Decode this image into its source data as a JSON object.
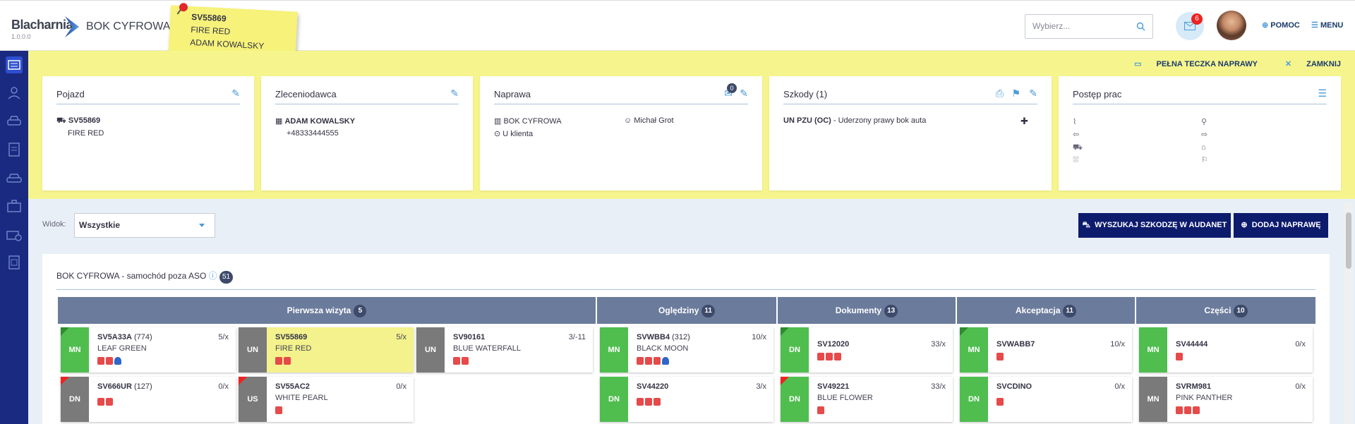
{
  "app": {
    "name": "Blacharnia",
    "version": "1.0.0.0",
    "title": "BOK CYFROWA"
  },
  "sticky": {
    "reg": "SV55869",
    "color": "FIRE RED",
    "owner": "ADAM KOWALSKY"
  },
  "header": {
    "search_placeholder": "Wybierz...",
    "mail_count": "6",
    "help_label": "POMOC",
    "menu_label": "MENU"
  },
  "yellow_links": {
    "full_folder": "PEŁNA TECZKA NAPRAWY",
    "close": "ZAMKNIJ"
  },
  "cards": {
    "vehicle": {
      "title": "Pojazd",
      "reg": "SV55869",
      "color": "FIRE RED"
    },
    "client": {
      "title": "Zleceniodawca",
      "name": "ADAM KOWALSKY",
      "phone": "+48333444555"
    },
    "repair": {
      "title": "Naprawa",
      "badge": "0",
      "location": "BOK CYFROWA",
      "place": "U klienta",
      "person": "Michał Grot"
    },
    "damage": {
      "title": "Szkody (1)",
      "insurer": "UN PZU (OC)",
      "desc": " - Uderzony prawy bok auta"
    },
    "progress": {
      "title": "Postęp prac"
    }
  },
  "filter": {
    "label": "Widok:",
    "value": "Wszystkie"
  },
  "buttons": {
    "audanet": "WYSZUKAJ SZKODZĘ W AUDANET",
    "add": "DODAJ NAPRAWĘ"
  },
  "panel": {
    "title": "BOK CYFROWA - samochód poza ASO",
    "count": "51"
  },
  "columns": [
    {
      "label": "Pierwsza wizyta",
      "count": "5"
    },
    {
      "label": "Oględziny",
      "count": "11"
    },
    {
      "label": "Dokumenty",
      "count": "13"
    },
    {
      "label": "Akceptacja",
      "count": "11"
    },
    {
      "label": "Części",
      "count": "10"
    }
  ],
  "tiles": [
    {
      "code": "MN",
      "reg": "SV5A33A",
      "extra": " (774)",
      "sub": "LEAF GREEN",
      "ratio": "5/x"
    },
    {
      "code": "UN",
      "reg": "SV55869",
      "extra": "",
      "sub": "FIRE RED",
      "ratio": "5/x"
    },
    {
      "code": "UN",
      "reg": "SV90161",
      "extra": "",
      "sub": "BLUE WATERFALL",
      "ratio": "3/-11"
    },
    {
      "code": "DN",
      "reg": "SV666UR",
      "extra": " (127)",
      "sub": "",
      "ratio": "0/x"
    },
    {
      "code": "US",
      "reg": "SV55AC2",
      "extra": "",
      "sub": "WHITE PEARL",
      "ratio": "0/x"
    },
    {
      "code": "MN",
      "reg": "SVWBB4",
      "extra": " (312)",
      "sub": "BLACK MOON",
      "ratio": "10/x"
    },
    {
      "code": "DN",
      "reg": "SV44220",
      "extra": "",
      "sub": "",
      "ratio": "3/x"
    },
    {
      "code": "DN",
      "reg": "SV12020",
      "extra": "",
      "sub": "",
      "ratio": "33/x"
    },
    {
      "code": "DN",
      "reg": "SV49221",
      "extra": "",
      "sub": "BLUE FLOWER",
      "ratio": "33/x"
    },
    {
      "code": "MN",
      "reg": "SVWABB7",
      "extra": "",
      "sub": "",
      "ratio": "10/x"
    },
    {
      "code": "DN",
      "reg": "SVCDINO",
      "extra": "",
      "sub": "",
      "ratio": "0/x"
    },
    {
      "code": "MN",
      "reg": "SV44444",
      "extra": "",
      "sub": "",
      "ratio": "0/x"
    },
    {
      "code": "MN",
      "reg": "SVRM981",
      "extra": "",
      "sub": "PINK PANTHER",
      "ratio": "0/x"
    }
  ]
}
